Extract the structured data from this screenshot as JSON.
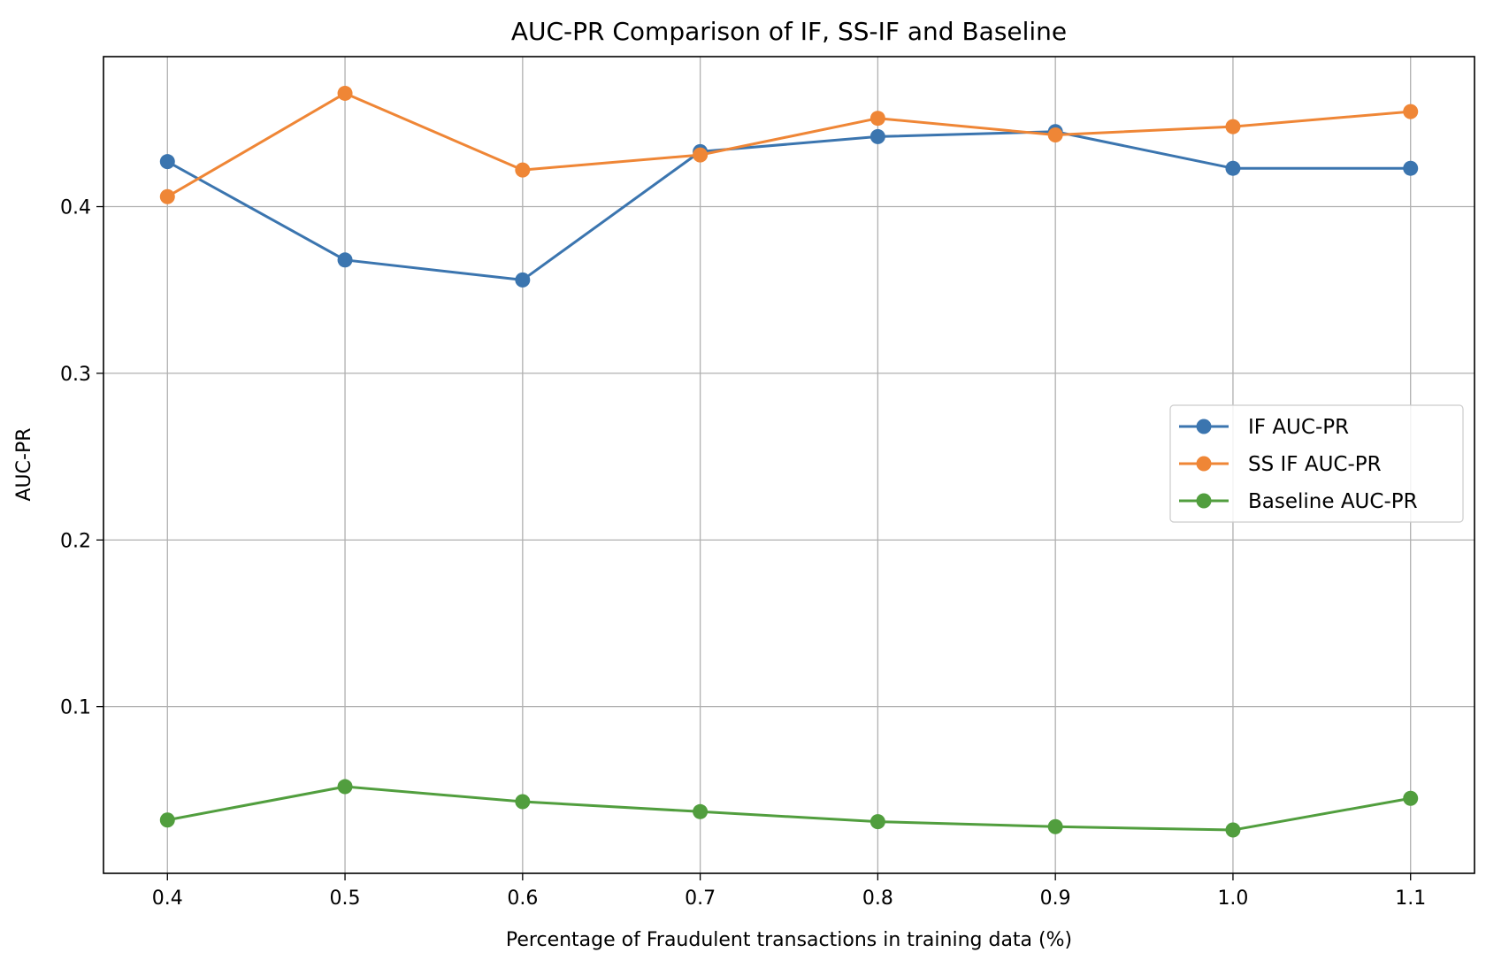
{
  "chart_data": {
    "type": "line",
    "title": "AUC-PR Comparison of IF, SS-IF and Baseline",
    "xlabel": "Percentage of Fraudulent transactions in training data (%)",
    "ylabel": "AUC-PR",
    "x": [
      0.4,
      0.5,
      0.6,
      0.7,
      0.8,
      0.9,
      1.0,
      1.1
    ],
    "xlim": [
      0.364,
      1.136
    ],
    "ylim": [
      0.0,
      0.49
    ],
    "x_ticks": [
      "0.4",
      "0.5",
      "0.6",
      "0.7",
      "0.8",
      "0.9",
      "1.0",
      "1.1"
    ],
    "y_ticks": [
      "0.1",
      "0.2",
      "0.3",
      "0.4"
    ],
    "y_tick_values": [
      0.1,
      0.2,
      0.3,
      0.4
    ],
    "grid": true,
    "legend_position": "center-right",
    "series": [
      {
        "name": "IF AUC-PR",
        "color": "#3b75af",
        "values": [
          0.427,
          0.368,
          0.356,
          0.433,
          0.442,
          0.445,
          0.423,
          0.423
        ]
      },
      {
        "name": "SS IF AUC-PR",
        "color": "#ef8636",
        "values": [
          0.406,
          0.468,
          0.422,
          0.431,
          0.453,
          0.443,
          0.448,
          0.457
        ]
      },
      {
        "name": "Baseline AUC-PR",
        "color": "#519e3e",
        "values": [
          0.032,
          0.052,
          0.043,
          0.037,
          0.031,
          0.028,
          0.026,
          0.045
        ]
      }
    ]
  }
}
